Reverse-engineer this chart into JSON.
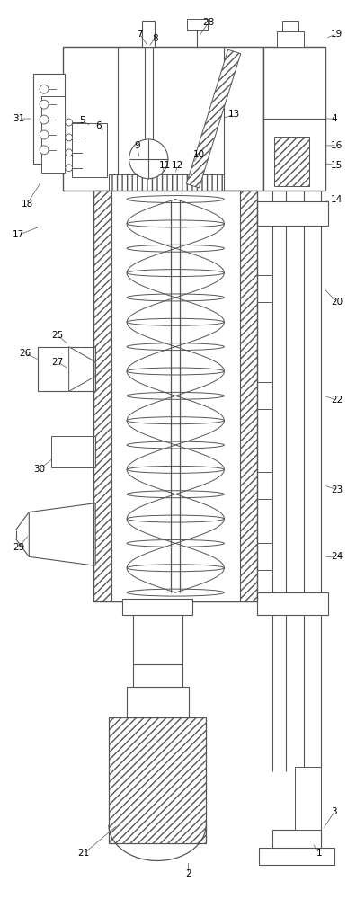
{
  "bg_color": "#ffffff",
  "line_color": "#555555",
  "label_color": "#000000",
  "label_fontsize": 7.5,
  "figsize": [
    3.86,
    10.0
  ],
  "dpi": 100
}
